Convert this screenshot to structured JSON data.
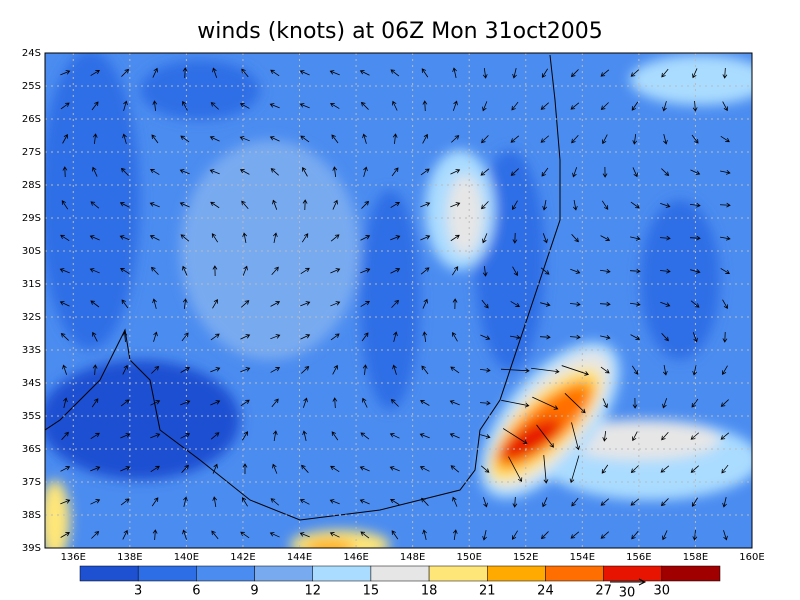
{
  "title": "winds (knots) at 06Z Mon 31oct2005",
  "map": {
    "lat_labels": [
      "24S",
      "25S",
      "26S",
      "27S",
      "28S",
      "29S",
      "30S",
      "31S",
      "32S",
      "33S",
      "34S",
      "35S",
      "36S",
      "37S",
      "38S",
      "39S"
    ],
    "lon_labels": [
      "136E",
      "138E",
      "140E",
      "142E",
      "144E",
      "146E",
      "148E",
      "150E",
      "152E",
      "154E",
      "156E",
      "158E",
      "160E"
    ]
  },
  "colorbar": {
    "colors": [
      "#1e50d2",
      "#2d6ee6",
      "#4b8cf0",
      "#78aaf0",
      "#aadcff",
      "#e6e6e6",
      "#ffe678",
      "#ffaa00",
      "#ff6e00",
      "#e61400",
      "#a00000"
    ],
    "labels": [
      "3",
      "6",
      "9",
      "12",
      "15",
      "18",
      "21",
      "24",
      "27",
      "30"
    ]
  },
  "reference_vector": {
    "label": "30"
  }
}
